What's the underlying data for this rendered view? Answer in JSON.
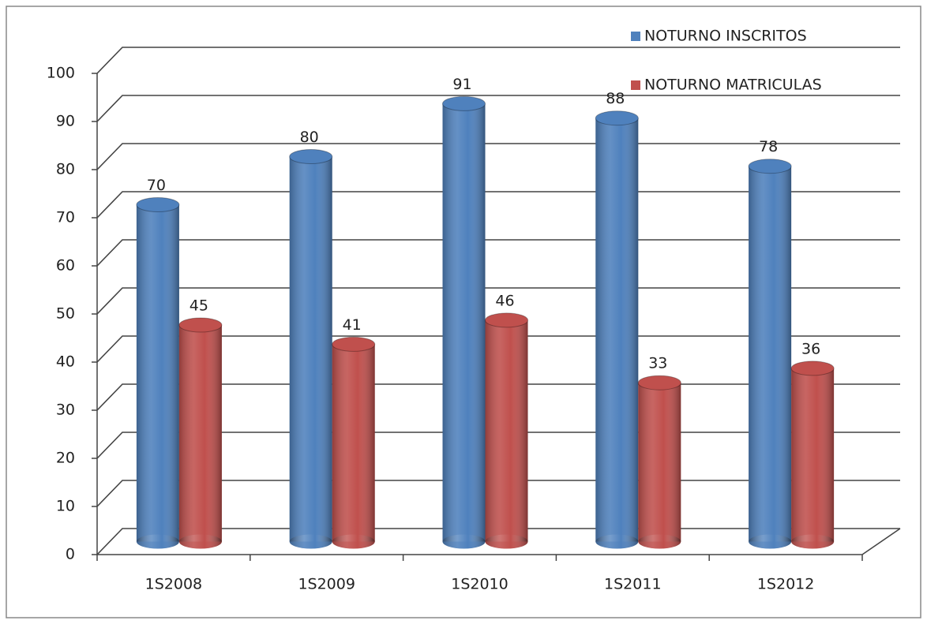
{
  "chart_data": {
    "type": "bar3d",
    "categories": [
      "1S2008",
      "1S2009",
      "1S2010",
      "1S2011",
      "1S2012"
    ],
    "series": [
      {
        "name": "NOTURNO INSCRITOS",
        "color": "#4f81bd",
        "values": [
          70,
          80,
          91,
          88,
          78
        ]
      },
      {
        "name": "NOTURNO MATRICULAS",
        "color": "#c0504d",
        "values": [
          45,
          41,
          46,
          33,
          36
        ]
      }
    ],
    "ylim": [
      0,
      100
    ],
    "yticks": [
      0,
      10,
      20,
      30,
      40,
      50,
      60,
      70,
      80,
      90,
      100
    ],
    "grid": true,
    "legend": "top-right",
    "data_labels": true
  }
}
